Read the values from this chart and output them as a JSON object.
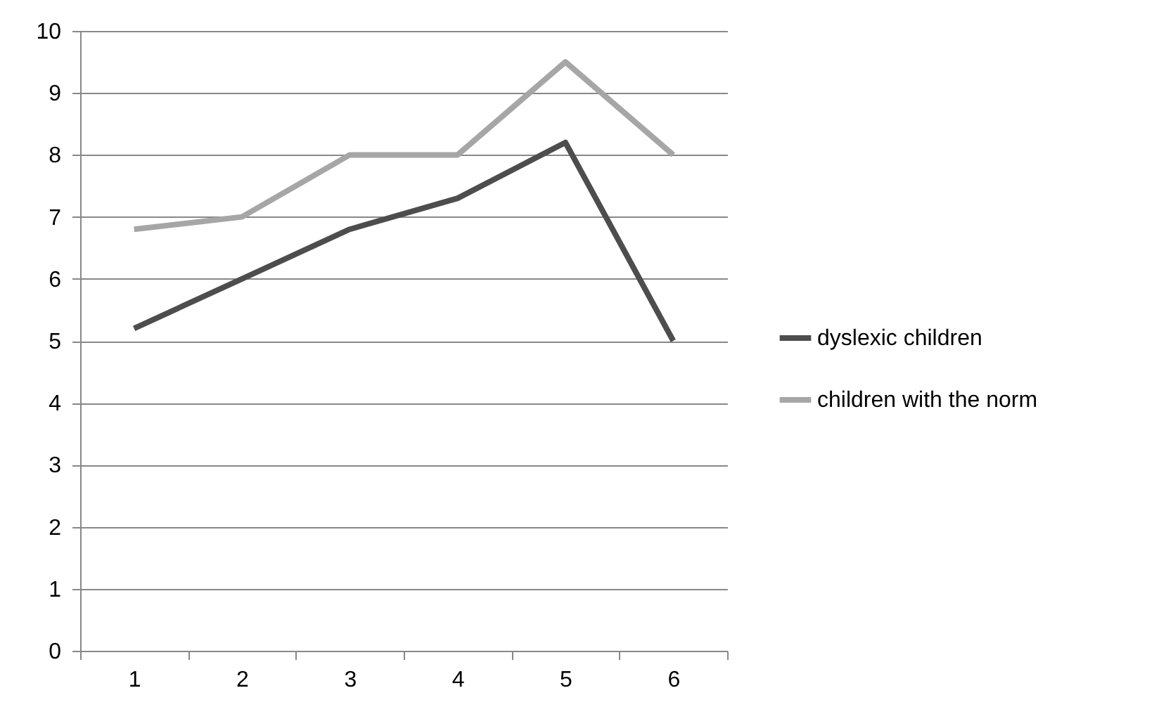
{
  "chart_data": {
    "type": "line",
    "categories": [
      "1",
      "2",
      "3",
      "4",
      "5",
      "6"
    ],
    "series": [
      {
        "name": "dyslexic children",
        "color": "#4d4d4d",
        "values": [
          5.2,
          6.0,
          6.8,
          7.3,
          8.2,
          5.0
        ]
      },
      {
        "name": "children with the norm",
        "color": "#a6a6a6",
        "values": [
          6.8,
          7.0,
          8.0,
          8.0,
          9.5,
          8.0
        ]
      }
    ],
    "ylim": [
      0,
      10
    ],
    "yticks": [
      0,
      1,
      2,
      3,
      4,
      5,
      6,
      7,
      8,
      9,
      10
    ],
    "grid": "y",
    "legend": "right",
    "marker": "none",
    "line_style": "solid"
  }
}
